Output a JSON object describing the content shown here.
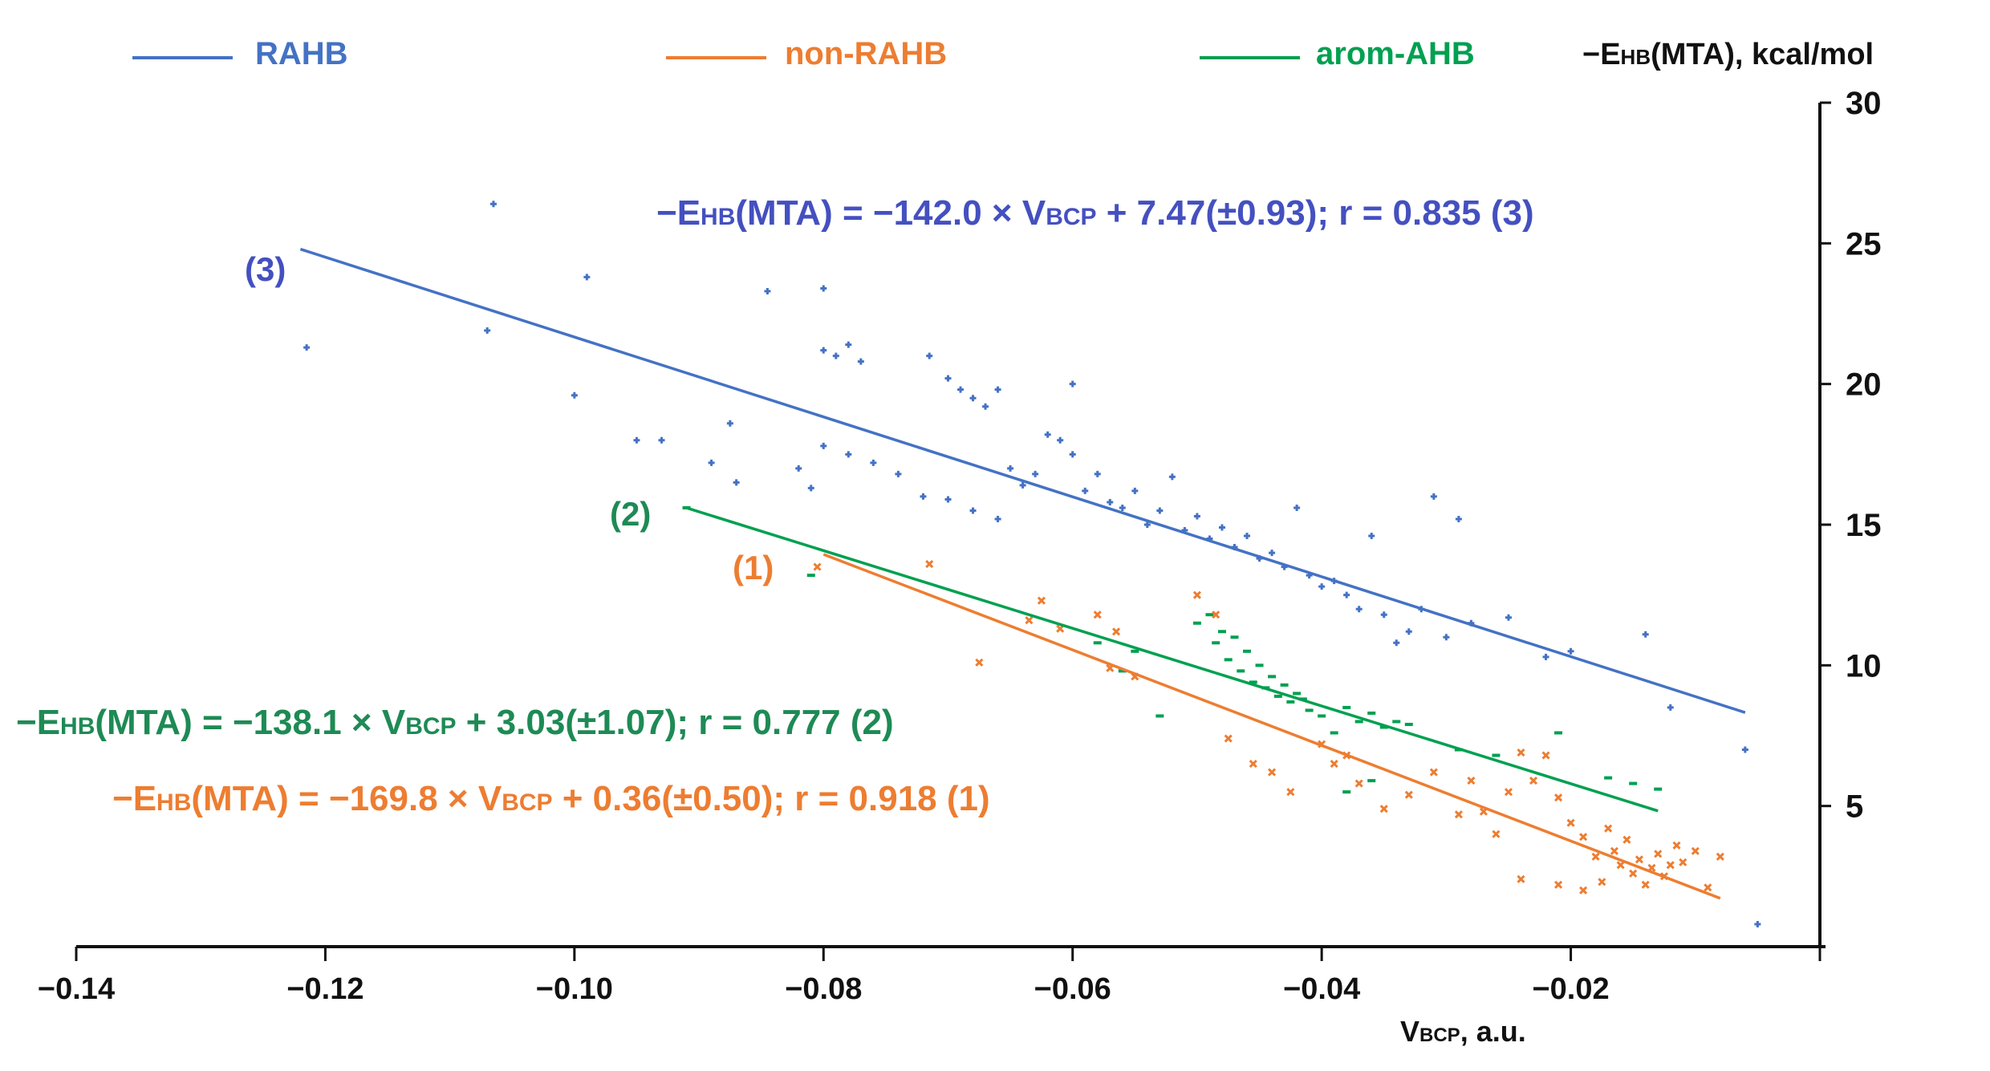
{
  "chart_data": {
    "type": "scatter",
    "xlabel_main": "V",
    "xlabel_sub": "BCP",
    "xlabel_tail": ", a.u.",
    "ylabel_pre": "−E",
    "ylabel_sub": "HB",
    "ylabel_tail": "(MTA), kcal/mol",
    "xlim": [
      -0.14,
      0.0
    ],
    "ylim": [
      0,
      30
    ],
    "x_ticks": [
      -0.14,
      -0.12,
      -0.1,
      -0.08,
      -0.06,
      -0.04,
      -0.02
    ],
    "x_tick_labels": [
      "−0.14",
      "−0.12",
      "−0.10",
      "−0.08",
      "−0.06",
      "−0.04",
      "−0.02"
    ],
    "y_ticks": [
      5,
      10,
      15,
      20,
      25,
      30
    ],
    "y_tick_labels": [
      "5",
      "10",
      "15",
      "20",
      "25",
      "30"
    ],
    "legend": [
      {
        "label": "RAHB",
        "color": "#4472C4"
      },
      {
        "label": "non-RAHB",
        "color": "#ED7D31"
      },
      {
        "label": "arom-AHB",
        "color": "#00A050"
      }
    ],
    "series": [
      {
        "name": "RAHB",
        "color": "#4472C4",
        "marker": "+",
        "fit": {
          "slope": -142.0,
          "intercept": 7.47,
          "x_range": [
            -0.122,
            -0.006
          ]
        },
        "equation": {
          "lhs_pre": "−E",
          "lhs_sub": "HB",
          "mid": "(MTA) = −142.0 × V",
          "mid_sub": "BCP",
          "rhs": " + 7.47(±0.93);   r = 0.835   (3)"
        },
        "line_label": "(3)",
        "points": [
          [
            -0.1215,
            21.3
          ],
          [
            -0.1065,
            26.4
          ],
          [
            -0.107,
            21.9
          ],
          [
            -0.099,
            23.8
          ],
          [
            -0.1,
            19.6
          ],
          [
            -0.095,
            18.0
          ],
          [
            -0.093,
            18.0
          ],
          [
            -0.0845,
            23.3
          ],
          [
            -0.08,
            23.4
          ],
          [
            -0.08,
            21.2
          ],
          [
            -0.079,
            21.0
          ],
          [
            -0.078,
            21.4
          ],
          [
            -0.077,
            20.8
          ],
          [
            -0.0715,
            21.0
          ],
          [
            -0.07,
            20.2
          ],
          [
            -0.069,
            19.8
          ],
          [
            -0.068,
            19.5
          ],
          [
            -0.067,
            19.2
          ],
          [
            -0.066,
            19.8
          ],
          [
            -0.06,
            20.0
          ],
          [
            -0.0875,
            18.6
          ],
          [
            -0.089,
            17.2
          ],
          [
            -0.087,
            16.5
          ],
          [
            -0.082,
            17.0
          ],
          [
            -0.081,
            16.3
          ],
          [
            -0.08,
            17.8
          ],
          [
            -0.078,
            17.5
          ],
          [
            -0.076,
            17.2
          ],
          [
            -0.074,
            16.8
          ],
          [
            -0.072,
            16.0
          ],
          [
            -0.07,
            15.9
          ],
          [
            -0.068,
            15.5
          ],
          [
            -0.066,
            15.2
          ],
          [
            -0.065,
            17.0
          ],
          [
            -0.064,
            16.4
          ],
          [
            -0.063,
            16.8
          ],
          [
            -0.062,
            18.2
          ],
          [
            -0.061,
            18.0
          ],
          [
            -0.06,
            17.5
          ],
          [
            -0.059,
            16.2
          ],
          [
            -0.058,
            16.8
          ],
          [
            -0.057,
            15.8
          ],
          [
            -0.056,
            15.6
          ],
          [
            -0.055,
            16.2
          ],
          [
            -0.054,
            15.0
          ],
          [
            -0.053,
            15.5
          ],
          [
            -0.052,
            16.7
          ],
          [
            -0.051,
            14.8
          ],
          [
            -0.05,
            15.3
          ],
          [
            -0.049,
            14.5
          ],
          [
            -0.048,
            14.9
          ],
          [
            -0.047,
            14.2
          ],
          [
            -0.046,
            14.6
          ],
          [
            -0.045,
            13.8
          ],
          [
            -0.044,
            14.0
          ],
          [
            -0.043,
            13.5
          ],
          [
            -0.042,
            15.6
          ],
          [
            -0.041,
            13.2
          ],
          [
            -0.04,
            12.8
          ],
          [
            -0.039,
            13.0
          ],
          [
            -0.038,
            12.5
          ],
          [
            -0.037,
            12.0
          ],
          [
            -0.036,
            14.6
          ],
          [
            -0.035,
            11.8
          ],
          [
            -0.034,
            10.8
          ],
          [
            -0.033,
            11.2
          ],
          [
            -0.032,
            12.0
          ],
          [
            -0.031,
            16.0
          ],
          [
            -0.03,
            11.0
          ],
          [
            -0.029,
            15.2
          ],
          [
            -0.028,
            11.5
          ],
          [
            -0.025,
            11.7
          ],
          [
            -0.022,
            10.3
          ],
          [
            -0.02,
            10.5
          ],
          [
            -0.014,
            11.1
          ],
          [
            -0.006,
            7.0
          ],
          [
            -0.005,
            0.8
          ],
          [
            -0.012,
            8.5
          ]
        ]
      },
      {
        "name": "arom-AHB",
        "color": "#00A050",
        "marker": "-",
        "fit": {
          "slope": -138.1,
          "intercept": 3.03,
          "x_range": [
            -0.091,
            -0.013
          ]
        },
        "equation": {
          "lhs_pre": "−E",
          "lhs_sub": "HB",
          "mid": "(MTA) = −138.1 × V",
          "mid_sub": "BCP",
          "rhs": " + 3.03(±1.07);   r = 0.777   (2)"
        },
        "line_label": "(2)",
        "points": [
          [
            -0.091,
            15.6
          ],
          [
            -0.081,
            13.2
          ],
          [
            -0.058,
            10.8
          ],
          [
            -0.056,
            9.8
          ],
          [
            -0.055,
            10.5
          ],
          [
            -0.053,
            8.2
          ],
          [
            -0.05,
            11.5
          ],
          [
            -0.049,
            11.8
          ],
          [
            -0.0485,
            10.8
          ],
          [
            -0.048,
            11.2
          ],
          [
            -0.0475,
            10.2
          ],
          [
            -0.047,
            11.0
          ],
          [
            -0.0465,
            9.8
          ],
          [
            -0.046,
            10.5
          ],
          [
            -0.0455,
            9.4
          ],
          [
            -0.045,
            10.0
          ],
          [
            -0.0445,
            9.2
          ],
          [
            -0.044,
            9.6
          ],
          [
            -0.0435,
            8.9
          ],
          [
            -0.043,
            9.3
          ],
          [
            -0.0425,
            8.7
          ],
          [
            -0.042,
            9.0
          ],
          [
            -0.0415,
            8.8
          ],
          [
            -0.041,
            8.4
          ],
          [
            -0.04,
            8.2
          ],
          [
            -0.039,
            7.6
          ],
          [
            -0.038,
            8.5
          ],
          [
            -0.037,
            8.0
          ],
          [
            -0.036,
            8.3
          ],
          [
            -0.035,
            7.8
          ],
          [
            -0.034,
            8.0
          ],
          [
            -0.033,
            7.9
          ],
          [
            -0.036,
            5.9
          ],
          [
            -0.038,
            5.5
          ],
          [
            -0.029,
            7.0
          ],
          [
            -0.026,
            6.8
          ],
          [
            -0.021,
            7.6
          ],
          [
            -0.017,
            6.0
          ],
          [
            -0.015,
            5.8
          ],
          [
            -0.013,
            5.6
          ]
        ]
      },
      {
        "name": "non-RAHB",
        "color": "#ED7D31",
        "marker": "x",
        "fit": {
          "slope": -169.8,
          "intercept": 0.36,
          "x_range": [
            -0.08,
            -0.008
          ]
        },
        "equation": {
          "lhs_pre": "−E",
          "lhs_sub": "HB",
          "mid": "(MTA) = −169.8 × V",
          "mid_sub": "BCP",
          "rhs": " + 0.36(±0.50);   r = 0.918   (1)"
        },
        "line_label": "(1)",
        "points": [
          [
            -0.0805,
            13.5
          ],
          [
            -0.0715,
            13.6
          ],
          [
            -0.0635,
            11.6
          ],
          [
            -0.0625,
            12.3
          ],
          [
            -0.061,
            11.3
          ],
          [
            -0.058,
            11.8
          ],
          [
            -0.0565,
            11.2
          ],
          [
            -0.05,
            12.5
          ],
          [
            -0.0485,
            11.8
          ],
          [
            -0.0675,
            10.1
          ],
          [
            -0.057,
            9.9
          ],
          [
            -0.055,
            9.6
          ],
          [
            -0.0475,
            7.4
          ],
          [
            -0.0455,
            6.5
          ],
          [
            -0.044,
            6.2
          ],
          [
            -0.0425,
            5.5
          ],
          [
            -0.04,
            7.2
          ],
          [
            -0.039,
            6.5
          ],
          [
            -0.038,
            6.8
          ],
          [
            -0.037,
            5.8
          ],
          [
            -0.035,
            4.9
          ],
          [
            -0.033,
            5.4
          ],
          [
            -0.031,
            6.2
          ],
          [
            -0.029,
            4.7
          ],
          [
            -0.028,
            5.9
          ],
          [
            -0.027,
            4.8
          ],
          [
            -0.026,
            4.0
          ],
          [
            -0.025,
            5.5
          ],
          [
            -0.024,
            6.9
          ],
          [
            -0.023,
            5.9
          ],
          [
            -0.022,
            6.8
          ],
          [
            -0.021,
            5.3
          ],
          [
            -0.02,
            4.4
          ],
          [
            -0.019,
            3.9
          ],
          [
            -0.018,
            3.2
          ],
          [
            -0.0175,
            2.3
          ],
          [
            -0.017,
            4.2
          ],
          [
            -0.0165,
            3.4
          ],
          [
            -0.016,
            2.9
          ],
          [
            -0.0155,
            3.8
          ],
          [
            -0.015,
            2.6
          ],
          [
            -0.0145,
            3.1
          ],
          [
            -0.014,
            2.2
          ],
          [
            -0.0135,
            2.8
          ],
          [
            -0.013,
            3.3
          ],
          [
            -0.0125,
            2.5
          ],
          [
            -0.012,
            2.9
          ],
          [
            -0.0115,
            3.6
          ],
          [
            -0.011,
            3.0
          ],
          [
            -0.01,
            3.4
          ],
          [
            -0.009,
            2.1
          ],
          [
            -0.008,
            3.2
          ],
          [
            -0.024,
            2.4
          ],
          [
            -0.021,
            2.2
          ],
          [
            -0.019,
            2.0
          ]
        ]
      }
    ]
  }
}
